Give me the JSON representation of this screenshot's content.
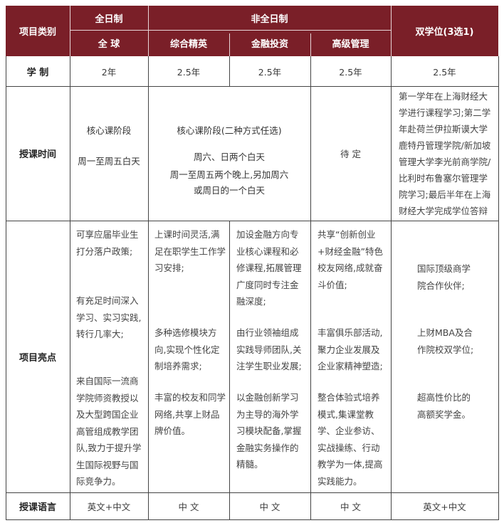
{
  "header": {
    "category": "项目类别",
    "fulltime": "全日制",
    "parttime": "非全日制",
    "dual": "双学位(3选1)",
    "programs": [
      "全 球",
      "综合精英",
      "金融投资",
      "高级管理"
    ]
  },
  "rows": {
    "duration": {
      "label": "学 制",
      "values": [
        "2年",
        "2.5年",
        "2.5年",
        "2.5年",
        "2.5年"
      ]
    },
    "schedule": {
      "label": "授课时间",
      "global": [
        "核心课阶段",
        "周一至周五白天"
      ],
      "parttime": [
        "核心课阶段(二种方式任选)",
        "周六、日两个白天",
        "周一至周五两个晚上,另加周六",
        "或周日的一个白天"
      ],
      "executive": "待 定",
      "dual": "第一学年在上海财经大学进行课程学习;第二学年赴荷兰伊拉斯谟大学鹿特丹管理学院/新加坡管理大学李光前商学院/比利时布鲁塞尔管理学院学习;最后半年在上海财经大学完成学位答辩"
    },
    "highlights": {
      "label": "项目亮点",
      "global": [
        "可享应届毕业生打分落户政策;",
        "有充足时间深入学习、实习实践,转行几率大;",
        "来自国际一流商学院师资教授以及大型跨国企业高管组成教学团队,致力于提升学生国际视野与国际竞争力。"
      ],
      "elite": [
        "上课时间灵活,满足在职学生工作学习安排;",
        "多种选修模块方向,实现个性化定制培养需求;",
        "丰富的校友和同学网络,共享上财品牌价值。"
      ],
      "finance": [
        "加设金融方向专业核心课程和必修课程,拓展管理广度同时专注金融深度;",
        "由行业领袖组成实践导师团队,关注学生职业发展;",
        "以金融创新学习为主导的海外学习模块配备,掌握金融实务操作的精髓。"
      ],
      "executive": [
        "共享“创新创业+财经金融”特色校友网络,成就奋斗价值;",
        "丰富俱乐部活动,聚力企业发展及企业家精神塑造;",
        "整合体验式培养模式,集课堂教学、企业参访、实战操练、行动教学为一体,提高实践能力。"
      ],
      "dual": [
        "国际顶级商学院合作伙伴;",
        "上财MBA及合作院校双学位;",
        "超高性价比的高额奖学金。"
      ]
    },
    "language": {
      "label": "授课语言",
      "values": [
        "英文+中文",
        "中 文",
        "中 文",
        "中 文",
        "英文+中文"
      ]
    }
  },
  "colors": {
    "header_bg": "#7a1f28"
  }
}
